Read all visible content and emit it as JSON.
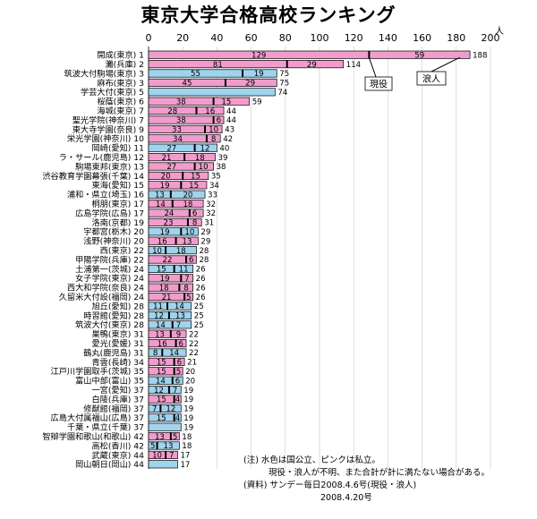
{
  "title": "東京大学合格高校ランキング",
  "unit": "人",
  "notes": [
    "(注) 水色は国公立、ピンクは私立。",
    "現役・浪人が不明、また合計が計に満たない場合がある。",
    "(資料) サンデー毎日2008.4.6号(現役・浪人)",
    "2008.4.20号"
  ],
  "callouts": {
    "current": "現役",
    "ronin": "浪人"
  },
  "colors": {
    "private": "#f19ccd",
    "national": "#9fd3ee",
    "bar_border": "#000000",
    "divider": "#000000",
    "grid": "#c8c8c8"
  },
  "chart_data": {
    "type": "bar",
    "orientation": "horizontal",
    "stacked": true,
    "xlim": [
      0,
      200
    ],
    "xticks": [
      0,
      20,
      40,
      60,
      80,
      100,
      120,
      140,
      160,
      180,
      200
    ],
    "series": [
      {
        "name": "現役",
        "key": "current"
      },
      {
        "name": "浪人",
        "key": "ronin"
      }
    ],
    "rows": [
      {
        "label": "開成(東京)",
        "rank": 1,
        "current": 129,
        "ronin": 59,
        "total": 188,
        "type": "private"
      },
      {
        "label": "灘(兵庫)",
        "rank": 2,
        "current": 81,
        "ronin": 29,
        "total": 114,
        "type": "private"
      },
      {
        "label": "筑波大付駒場(東京)",
        "rank": 3,
        "current": 55,
        "ronin": 19,
        "total": 75,
        "type": "national"
      },
      {
        "label": "麻布(東京)",
        "rank": 3,
        "current": 45,
        "ronin": 29,
        "total": 75,
        "type": "private"
      },
      {
        "label": "学芸大付(東京)",
        "rank": 5,
        "current": null,
        "ronin": null,
        "total": 74,
        "type": "national"
      },
      {
        "label": "桜蔭(東京)",
        "rank": 6,
        "current": 38,
        "ronin": 15,
        "total": 59,
        "type": "private"
      },
      {
        "label": "海城(東京)",
        "rank": 7,
        "current": 28,
        "ronin": 16,
        "total": 44,
        "type": "private"
      },
      {
        "label": "聖光学院(神奈川)",
        "rank": 7,
        "current": 38,
        "ronin": 6,
        "total": 44,
        "type": "private"
      },
      {
        "label": "東大寺学園(奈良)",
        "rank": 9,
        "current": 33,
        "ronin": 10,
        "total": 43,
        "type": "private"
      },
      {
        "label": "栄光学園(神奈川)",
        "rank": 10,
        "current": 34,
        "ronin": 8,
        "total": 42,
        "type": "private"
      },
      {
        "label": "岡崎(愛知)",
        "rank": 11,
        "current": 27,
        "ronin": 12,
        "total": 40,
        "type": "national"
      },
      {
        "label": "ラ・サール(鹿児島)",
        "rank": 12,
        "current": 21,
        "ronin": 18,
        "total": 39,
        "type": "private"
      },
      {
        "label": "駒場東邦(東京)",
        "rank": 13,
        "current": 27,
        "ronin": 10,
        "total": 38,
        "type": "private"
      },
      {
        "label": "渋谷教育学園幕張(千葉)",
        "rank": 14,
        "current": 20,
        "ronin": 15,
        "total": 35,
        "type": "private"
      },
      {
        "label": "東海(愛知)",
        "rank": 15,
        "current": 19,
        "ronin": 15,
        "total": 34,
        "type": "private"
      },
      {
        "label": "浦和・県立(埼玉)",
        "rank": 16,
        "current": 13,
        "ronin": 20,
        "total": 33,
        "type": "national"
      },
      {
        "label": "桐朋(東京)",
        "rank": 17,
        "current": 14,
        "ronin": 18,
        "total": 32,
        "type": "private"
      },
      {
        "label": "広島学院(広島)",
        "rank": 17,
        "current": 24,
        "ronin": 6,
        "total": 32,
        "type": "private"
      },
      {
        "label": "洛南(京都)",
        "rank": 19,
        "current": 23,
        "ronin": 8,
        "total": 31,
        "type": "private"
      },
      {
        "label": "宇都宮(栃木)",
        "rank": 20,
        "current": 19,
        "ronin": 10,
        "total": 29,
        "type": "national"
      },
      {
        "label": "浅野(神奈川)",
        "rank": 20,
        "current": 16,
        "ronin": 13,
        "total": 29,
        "type": "private"
      },
      {
        "label": "西(東京)",
        "rank": 22,
        "current": 10,
        "ronin": 18,
        "total": 28,
        "type": "national"
      },
      {
        "label": "甲陽学院(兵庫)",
        "rank": 22,
        "current": 22,
        "ronin": 6,
        "total": 28,
        "type": "private"
      },
      {
        "label": "土浦第一(茨城)",
        "rank": 24,
        "current": 15,
        "ronin": 11,
        "total": 26,
        "type": "national"
      },
      {
        "label": "女子学院(東京)",
        "rank": 24,
        "current": 19,
        "ronin": 7,
        "total": 26,
        "type": "private"
      },
      {
        "label": "西大和学院(奈良)",
        "rank": 24,
        "current": 18,
        "ronin": 8,
        "total": 26,
        "type": "private"
      },
      {
        "label": "久留米大付設(福岡)",
        "rank": 24,
        "current": 21,
        "ronin": 5,
        "total": 26,
        "type": "private"
      },
      {
        "label": "旭丘(愛知)",
        "rank": 28,
        "current": 11,
        "ronin": 14,
        "total": 25,
        "type": "national"
      },
      {
        "label": "時習館(愛知)",
        "rank": 28,
        "current": 12,
        "ronin": 13,
        "total": 25,
        "type": "national"
      },
      {
        "label": "筑波大付(東京)",
        "rank": 28,
        "current": 14,
        "ronin": 7,
        "total": 25,
        "type": "national"
      },
      {
        "label": "巣鴨(東京)",
        "rank": 31,
        "current": 13,
        "ronin": 9,
        "total": 22,
        "type": "private"
      },
      {
        "label": "愛光(愛媛)",
        "rank": 31,
        "current": 16,
        "ronin": 6,
        "total": 22,
        "type": "private"
      },
      {
        "label": "鶴丸(鹿児島)",
        "rank": 31,
        "current": 8,
        "ronin": 14,
        "total": 22,
        "type": "national"
      },
      {
        "label": "青雲(長崎)",
        "rank": 34,
        "current": 15,
        "ronin": 6,
        "total": 21,
        "type": "private"
      },
      {
        "label": "江戸川学園取手(茨城)",
        "rank": 35,
        "current": 15,
        "ronin": 5,
        "total": 20,
        "type": "private"
      },
      {
        "label": "富山中部(富山)",
        "rank": 35,
        "current": 14,
        "ronin": 6,
        "total": 20,
        "type": "national"
      },
      {
        "label": "一宮(愛知)",
        "rank": 37,
        "current": 12,
        "ronin": 7,
        "total": 19,
        "type": "national"
      },
      {
        "label": "白陵(兵庫)",
        "rank": 37,
        "current": 15,
        "ronin": 4,
        "total": 19,
        "type": "private"
      },
      {
        "label": "修猷館(福岡)",
        "rank": 37,
        "current": 7,
        "ronin": 12,
        "total": 19,
        "type": "national"
      },
      {
        "label": "広島大付属福山(広島)",
        "rank": 37,
        "current": 15,
        "ronin": 4,
        "total": 19,
        "type": "national"
      },
      {
        "label": "千葉・県立(千葉)",
        "rank": 37,
        "current": null,
        "ronin": null,
        "total": 19,
        "type": "national"
      },
      {
        "label": "智辯学園和歌山(和歌山)",
        "rank": 42,
        "current": 13,
        "ronin": 5,
        "total": 18,
        "type": "private"
      },
      {
        "label": "高松(香川)",
        "rank": 42,
        "current": 5,
        "ronin": 13,
        "total": 18,
        "type": "national"
      },
      {
        "label": "武蔵(東京)",
        "rank": 44,
        "current": 10,
        "ronin": 7,
        "total": 17,
        "type": "private"
      },
      {
        "label": "岡山朝日(岡山)",
        "rank": 44,
        "current": null,
        "ronin": null,
        "total": 17,
        "type": "national"
      }
    ]
  }
}
